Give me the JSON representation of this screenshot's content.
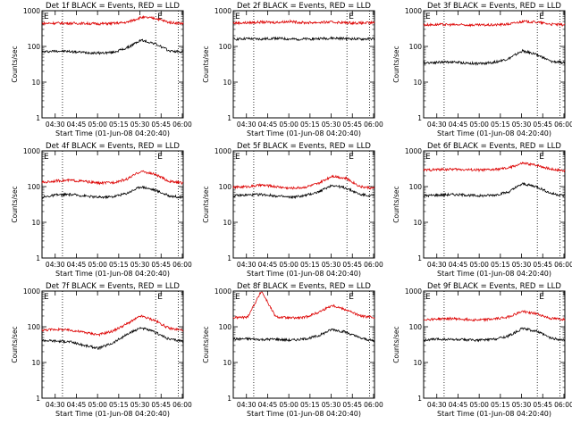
{
  "figure": {
    "shared": {
      "ylabel": "Counts/sec",
      "xlabel": "Start Time (01-Jun-08 04:20:40)",
      "x_ticks": [
        "04:30",
        "04:45",
        "05:00",
        "05:15",
        "05:30",
        "05:45",
        "06:00"
      ],
      "y_ticks": [
        "1",
        "10",
        "100",
        "1000"
      ],
      "y_scale": "log",
      "y_range": [
        1,
        1000
      ],
      "x_range_minutes_after_04_20_40": [
        0,
        100
      ],
      "black_color": "#000000",
      "red_color": "#dd0000",
      "marker_label": "E"
    }
  },
  "chart_data": [
    {
      "type": "line",
      "title": "Det 1f BLACK = Events, RED = LLD",
      "series": [
        {
          "color": "#000000",
          "x": [
            0,
            10,
            20,
            30,
            40,
            50,
            60,
            70,
            80,
            90,
            100
          ],
          "values": [
            70,
            75,
            72,
            68,
            65,
            68,
            90,
            150,
            120,
            75,
            70
          ]
        },
        {
          "color": "#dd0000",
          "x": [
            0,
            10,
            20,
            30,
            40,
            50,
            60,
            70,
            80,
            90,
            100
          ],
          "values": [
            440,
            450,
            445,
            440,
            430,
            440,
            470,
            650,
            620,
            470,
            440
          ]
        }
      ]
    },
    {
      "type": "line",
      "title": "Det 2f BLACK = Events, RED = LLD",
      "series": [
        {
          "color": "#000000",
          "x": [
            0,
            10,
            20,
            30,
            40,
            50,
            60,
            70,
            80,
            90,
            100
          ],
          "values": [
            160,
            165,
            160,
            170,
            160,
            160,
            165,
            170,
            165,
            160,
            165
          ]
        },
        {
          "color": "#dd0000",
          "x": [
            0,
            10,
            20,
            30,
            40,
            50,
            60,
            70,
            80,
            90,
            100
          ],
          "values": [
            450,
            460,
            480,
            470,
            500,
            460,
            470,
            480,
            460,
            450,
            460
          ]
        }
      ]
    },
    {
      "type": "line",
      "title": "Det 3f BLACK = Events, RED = LLD",
      "series": [
        {
          "color": "#000000",
          "x": [
            0,
            10,
            20,
            30,
            40,
            50,
            60,
            70,
            80,
            90,
            100
          ],
          "values": [
            35,
            36,
            37,
            34,
            33,
            36,
            45,
            75,
            60,
            38,
            35
          ]
        },
        {
          "color": "#dd0000",
          "x": [
            0,
            10,
            20,
            30,
            40,
            50,
            60,
            70,
            80,
            90,
            100
          ],
          "values": [
            400,
            410,
            405,
            400,
            395,
            400,
            420,
            500,
            480,
            420,
            400
          ]
        }
      ]
    },
    {
      "type": "line",
      "title": "Det 4f BLACK = Events, RED = LLD",
      "series": [
        {
          "color": "#000000",
          "x": [
            0,
            10,
            20,
            30,
            40,
            50,
            60,
            70,
            80,
            90,
            100
          ],
          "values": [
            50,
            58,
            60,
            55,
            50,
            52,
            65,
            100,
            80,
            55,
            50
          ]
        },
        {
          "color": "#dd0000",
          "x": [
            0,
            10,
            20,
            30,
            40,
            50,
            60,
            70,
            80,
            90,
            100
          ],
          "values": [
            130,
            145,
            150,
            140,
            125,
            130,
            160,
            270,
            220,
            140,
            125
          ]
        }
      ]
    },
    {
      "type": "line",
      "title": "Det 5f BLACK = Events, RED = LLD",
      "series": [
        {
          "color": "#000000",
          "x": [
            0,
            10,
            20,
            30,
            40,
            50,
            60,
            70,
            80,
            90,
            100
          ],
          "values": [
            55,
            58,
            60,
            55,
            50,
            55,
            70,
            110,
            90,
            60,
            55
          ]
        },
        {
          "color": "#dd0000",
          "x": [
            0,
            10,
            20,
            30,
            40,
            50,
            60,
            70,
            80,
            90,
            100
          ],
          "values": [
            95,
            100,
            110,
            100,
            90,
            95,
            120,
            200,
            170,
            100,
            90
          ]
        }
      ]
    },
    {
      "type": "line",
      "title": "Det 6f BLACK = Events, RED = LLD",
      "series": [
        {
          "color": "#000000",
          "x": [
            0,
            10,
            20,
            30,
            40,
            50,
            60,
            70,
            80,
            90,
            100
          ],
          "values": [
            55,
            58,
            60,
            58,
            55,
            58,
            70,
            120,
            100,
            65,
            55
          ]
        },
        {
          "color": "#dd0000",
          "x": [
            0,
            10,
            20,
            30,
            40,
            50,
            60,
            70,
            80,
            90,
            100
          ],
          "values": [
            290,
            300,
            305,
            300,
            290,
            300,
            330,
            450,
            400,
            310,
            280
          ]
        }
      ]
    },
    {
      "type": "line",
      "title": "Det 7f BLACK = Events, RED = LLD",
      "series": [
        {
          "color": "#000000",
          "x": [
            0,
            10,
            20,
            30,
            40,
            50,
            60,
            70,
            80,
            90,
            100
          ],
          "values": [
            42,
            40,
            38,
            30,
            25,
            35,
            60,
            95,
            70,
            45,
            40
          ]
        },
        {
          "color": "#dd0000",
          "x": [
            0,
            10,
            20,
            30,
            40,
            50,
            60,
            70,
            80,
            90,
            100
          ],
          "values": [
            80,
            85,
            80,
            70,
            60,
            75,
            120,
            200,
            150,
            90,
            80
          ]
        }
      ]
    },
    {
      "type": "line",
      "title": "Det 8f BLACK = Events, RED = LLD",
      "series": [
        {
          "color": "#000000",
          "x": [
            0,
            10,
            20,
            30,
            40,
            50,
            60,
            70,
            80,
            90,
            100
          ],
          "values": [
            45,
            46,
            44,
            45,
            42,
            45,
            55,
            85,
            70,
            48,
            40
          ]
        },
        {
          "color": "#dd0000",
          "x": [
            0,
            10,
            20,
            30,
            40,
            50,
            60,
            70,
            80,
            90,
            100
          ],
          "values": [
            180,
            185,
            1000,
            190,
            175,
            180,
            250,
            400,
            300,
            200,
            180
          ]
        }
      ]
    },
    {
      "type": "line",
      "title": "Det 9f BLACK = Events, RED = LLD",
      "series": [
        {
          "color": "#000000",
          "x": [
            0,
            10,
            20,
            30,
            40,
            50,
            60,
            70,
            80,
            90,
            100
          ],
          "values": [
            42,
            45,
            44,
            43,
            42,
            45,
            55,
            90,
            75,
            48,
            42
          ]
        },
        {
          "color": "#dd0000",
          "x": [
            0,
            10,
            20,
            30,
            40,
            50,
            60,
            70,
            80,
            90,
            100
          ],
          "values": [
            160,
            165,
            170,
            160,
            155,
            165,
            190,
            270,
            230,
            170,
            160
          ]
        }
      ]
    }
  ]
}
